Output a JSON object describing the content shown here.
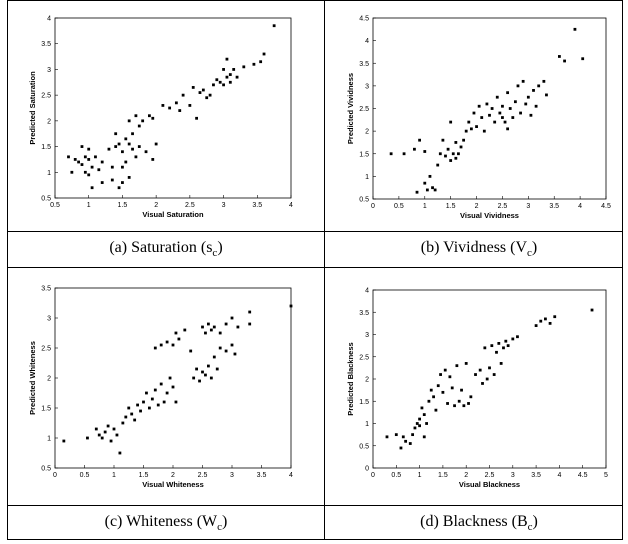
{
  "figure": {
    "captions": [
      {
        "main": "(a) Saturation (s",
        "sub": "c",
        "close": ")"
      },
      {
        "main": "(b) Vividness (V",
        "sub": "c",
        "close": ")"
      },
      {
        "main": "(c) Whiteness (W",
        "sub": "c",
        "close": ")"
      },
      {
        "main": "(d) Blackness (B",
        "sub": "c",
        "close": ")"
      }
    ]
  },
  "chart_data": [
    {
      "type": "scatter",
      "title": "",
      "xlabel": "Visual Saturation",
      "ylabel": "Predicted Saturation",
      "xlim": [
        0.5,
        4
      ],
      "ylim": [
        0.5,
        4
      ],
      "xticks": [
        "0.5",
        "1",
        "1.5",
        "2",
        "2.5",
        "3",
        "3.5",
        "4"
      ],
      "yticks": [
        "0.5",
        "1",
        "1.5",
        "2",
        "2.5",
        "3",
        "3.5",
        "4"
      ],
      "points": [
        [
          0.7,
          1.3
        ],
        [
          0.75,
          1.0
        ],
        [
          0.8,
          1.25
        ],
        [
          0.85,
          1.2
        ],
        [
          0.9,
          1.5
        ],
        [
          0.9,
          1.15
        ],
        [
          0.95,
          1.0
        ],
        [
          0.95,
          1.3
        ],
        [
          1.0,
          0.95
        ],
        [
          1.0,
          1.45
        ],
        [
          1.0,
          1.25
        ],
        [
          1.05,
          0.7
        ],
        [
          1.05,
          1.1
        ],
        [
          1.1,
          1.3
        ],
        [
          1.15,
          1.05
        ],
        [
          1.2,
          0.8
        ],
        [
          1.2,
          1.2
        ],
        [
          1.3,
          1.45
        ],
        [
          1.35,
          1.1
        ],
        [
          1.35,
          0.85
        ],
        [
          1.4,
          1.5
        ],
        [
          1.4,
          1.75
        ],
        [
          1.45,
          1.55
        ],
        [
          1.45,
          0.7
        ],
        [
          1.5,
          1.4
        ],
        [
          1.5,
          1.1
        ],
        [
          1.5,
          0.8
        ],
        [
          1.55,
          1.2
        ],
        [
          1.55,
          1.65
        ],
        [
          1.6,
          1.55
        ],
        [
          1.6,
          2.0
        ],
        [
          1.6,
          0.9
        ],
        [
          1.65,
          1.45
        ],
        [
          1.65,
          1.75
        ],
        [
          1.7,
          2.1
        ],
        [
          1.7,
          1.3
        ],
        [
          1.75,
          1.9
        ],
        [
          1.75,
          1.5
        ],
        [
          1.8,
          2.0
        ],
        [
          1.85,
          1.4
        ],
        [
          1.9,
          2.1
        ],
        [
          1.95,
          1.25
        ],
        [
          1.95,
          2.05
        ],
        [
          2.0,
          1.55
        ],
        [
          2.1,
          2.3
        ],
        [
          2.2,
          2.25
        ],
        [
          2.3,
          2.35
        ],
        [
          2.35,
          2.2
        ],
        [
          2.4,
          2.5
        ],
        [
          2.5,
          2.3
        ],
        [
          2.55,
          2.65
        ],
        [
          2.6,
          2.05
        ],
        [
          2.65,
          2.55
        ],
        [
          2.7,
          2.6
        ],
        [
          2.75,
          2.45
        ],
        [
          2.8,
          2.5
        ],
        [
          2.85,
          2.7
        ],
        [
          2.9,
          2.8
        ],
        [
          2.95,
          2.75
        ],
        [
          3.0,
          3.0
        ],
        [
          3.0,
          2.7
        ],
        [
          3.05,
          3.2
        ],
        [
          3.05,
          2.85
        ],
        [
          3.1,
          2.9
        ],
        [
          3.1,
          2.75
        ],
        [
          3.15,
          3.0
        ],
        [
          3.2,
          2.85
        ],
        [
          3.3,
          3.05
        ],
        [
          3.45,
          3.1
        ],
        [
          3.55,
          3.15
        ],
        [
          3.6,
          3.3
        ],
        [
          3.75,
          3.85
        ]
      ]
    },
    {
      "type": "scatter",
      "title": "",
      "xlabel": "Visual Vividness",
      "ylabel": "Predicted Vividness",
      "xlim": [
        0,
        4.5
      ],
      "ylim": [
        0.5,
        4.5
      ],
      "xticks": [
        "0",
        "0.5",
        "1",
        "1.5",
        "2",
        "2.5",
        "3",
        "3.5",
        "4",
        "4.5"
      ],
      "yticks": [
        "0.5",
        "1",
        "1.5",
        "2",
        "2.5",
        "3",
        "3.5",
        "4",
        "4.5"
      ],
      "points": [
        [
          0.35,
          1.5
        ],
        [
          0.6,
          1.5
        ],
        [
          0.8,
          1.6
        ],
        [
          0.85,
          0.65
        ],
        [
          0.9,
          1.8
        ],
        [
          1.0,
          1.55
        ],
        [
          1.0,
          0.85
        ],
        [
          1.05,
          0.7
        ],
        [
          1.1,
          1.0
        ],
        [
          1.15,
          0.75
        ],
        [
          1.2,
          0.7
        ],
        [
          1.25,
          1.25
        ],
        [
          1.3,
          1.5
        ],
        [
          1.35,
          1.8
        ],
        [
          1.4,
          1.45
        ],
        [
          1.45,
          1.6
        ],
        [
          1.5,
          1.35
        ],
        [
          1.5,
          2.2
        ],
        [
          1.55,
          1.5
        ],
        [
          1.6,
          1.4
        ],
        [
          1.6,
          1.75
        ],
        [
          1.65,
          1.5
        ],
        [
          1.7,
          1.65
        ],
        [
          1.75,
          1.8
        ],
        [
          1.8,
          2.0
        ],
        [
          1.85,
          2.2
        ],
        [
          1.9,
          2.05
        ],
        [
          1.95,
          2.4
        ],
        [
          2.0,
          2.1
        ],
        [
          2.05,
          2.55
        ],
        [
          2.1,
          2.3
        ],
        [
          2.15,
          2.0
        ],
        [
          2.2,
          2.6
        ],
        [
          2.25,
          2.35
        ],
        [
          2.3,
          2.5
        ],
        [
          2.35,
          2.2
        ],
        [
          2.4,
          2.75
        ],
        [
          2.45,
          2.4
        ],
        [
          2.5,
          2.3
        ],
        [
          2.5,
          2.55
        ],
        [
          2.55,
          2.2
        ],
        [
          2.6,
          2.85
        ],
        [
          2.6,
          2.05
        ],
        [
          2.65,
          2.5
        ],
        [
          2.7,
          2.3
        ],
        [
          2.75,
          2.65
        ],
        [
          2.8,
          3.0
        ],
        [
          2.85,
          2.4
        ],
        [
          2.9,
          3.1
        ],
        [
          2.95,
          2.6
        ],
        [
          3.0,
          2.75
        ],
        [
          3.05,
          2.35
        ],
        [
          3.1,
          2.9
        ],
        [
          3.15,
          2.55
        ],
        [
          3.2,
          3.0
        ],
        [
          3.3,
          3.1
        ],
        [
          3.35,
          2.8
        ],
        [
          3.6,
          3.65
        ],
        [
          3.7,
          3.55
        ],
        [
          3.9,
          4.25
        ],
        [
          4.05,
          3.6
        ]
      ]
    },
    {
      "type": "scatter",
      "title": "",
      "xlabel": "Visual Whiteness",
      "ylabel": "Predicted Whiteness",
      "xlim": [
        0,
        4
      ],
      "ylim": [
        0.5,
        3.5
      ],
      "xticks": [
        "0",
        "0.5",
        "1",
        "1.5",
        "2",
        "2.5",
        "3",
        "3.5",
        "4"
      ],
      "yticks": [
        "0.5",
        "1",
        "1.5",
        "2",
        "2.5",
        "3",
        "3.5"
      ],
      "points": [
        [
          0.15,
          0.95
        ],
        [
          0.55,
          1.0
        ],
        [
          0.7,
          1.15
        ],
        [
          0.75,
          1.05
        ],
        [
          0.8,
          1.0
        ],
        [
          0.85,
          1.1
        ],
        [
          0.9,
          1.2
        ],
        [
          0.95,
          0.95
        ],
        [
          1.0,
          1.15
        ],
        [
          1.05,
          1.05
        ],
        [
          1.1,
          0.75
        ],
        [
          1.15,
          1.25
        ],
        [
          1.2,
          1.35
        ],
        [
          1.25,
          1.5
        ],
        [
          1.3,
          1.4
        ],
        [
          1.35,
          1.3
        ],
        [
          1.4,
          1.55
        ],
        [
          1.45,
          1.45
        ],
        [
          1.5,
          1.6
        ],
        [
          1.55,
          1.75
        ],
        [
          1.6,
          1.5
        ],
        [
          1.65,
          1.65
        ],
        [
          1.7,
          1.8
        ],
        [
          1.75,
          1.55
        ],
        [
          1.8,
          1.9
        ],
        [
          1.85,
          1.6
        ],
        [
          1.9,
          1.75
        ],
        [
          1.95,
          2.0
        ],
        [
          2.0,
          1.85
        ],
        [
          2.05,
          1.6
        ],
        [
          1.7,
          2.5
        ],
        [
          1.8,
          2.55
        ],
        [
          1.9,
          2.6
        ],
        [
          2.0,
          2.55
        ],
        [
          2.05,
          2.75
        ],
        [
          2.1,
          2.65
        ],
        [
          2.2,
          2.8
        ],
        [
          2.3,
          2.45
        ],
        [
          2.35,
          2.0
        ],
        [
          2.4,
          2.15
        ],
        [
          2.45,
          1.95
        ],
        [
          2.5,
          2.1
        ],
        [
          2.55,
          2.05
        ],
        [
          2.6,
          2.2
        ],
        [
          2.65,
          2.0
        ],
        [
          2.7,
          2.35
        ],
        [
          2.75,
          2.15
        ],
        [
          2.8,
          2.5
        ],
        [
          2.9,
          2.45
        ],
        [
          3.0,
          2.55
        ],
        [
          3.05,
          2.4
        ],
        [
          2.5,
          2.85
        ],
        [
          2.55,
          2.75
        ],
        [
          2.6,
          2.9
        ],
        [
          2.65,
          2.8
        ],
        [
          2.7,
          2.85
        ],
        [
          2.8,
          2.75
        ],
        [
          2.9,
          2.9
        ],
        [
          3.0,
          3.0
        ],
        [
          3.1,
          2.85
        ],
        [
          3.3,
          3.1
        ],
        [
          3.3,
          2.9
        ],
        [
          4.0,
          3.2
        ]
      ]
    },
    {
      "type": "scatter",
      "title": "",
      "xlabel": "Visual Blackness",
      "ylabel": "Predicted Blackness",
      "xlim": [
        0,
        5
      ],
      "ylim": [
        0,
        4
      ],
      "xticks": [
        "0",
        "0.5",
        "1",
        "1.5",
        "2",
        "2.5",
        "3",
        "3.5",
        "4",
        "4.5",
        "5"
      ],
      "yticks": [
        "0",
        "0.5",
        "1",
        "1.5",
        "2",
        "2.5",
        "3",
        "3.5",
        "4"
      ],
      "points": [
        [
          0.3,
          0.7
        ],
        [
          0.5,
          0.75
        ],
        [
          0.6,
          0.45
        ],
        [
          0.65,
          0.7
        ],
        [
          0.7,
          0.6
        ],
        [
          0.8,
          0.55
        ],
        [
          0.85,
          0.75
        ],
        [
          0.9,
          0.9
        ],
        [
          0.95,
          1.0
        ],
        [
          1.0,
          1.1
        ],
        [
          1.0,
          0.95
        ],
        [
          1.05,
          1.35
        ],
        [
          1.1,
          1.2
        ],
        [
          1.1,
          0.7
        ],
        [
          1.15,
          1.0
        ],
        [
          1.2,
          1.5
        ],
        [
          1.25,
          1.75
        ],
        [
          1.3,
          1.6
        ],
        [
          1.35,
          1.3
        ],
        [
          1.4,
          1.85
        ],
        [
          1.45,
          2.1
        ],
        [
          1.5,
          1.7
        ],
        [
          1.55,
          2.2
        ],
        [
          1.6,
          1.45
        ],
        [
          1.65,
          2.05
        ],
        [
          1.7,
          1.8
        ],
        [
          1.75,
          1.4
        ],
        [
          1.8,
          2.3
        ],
        [
          1.85,
          1.5
        ],
        [
          1.9,
          1.75
        ],
        [
          1.95,
          1.4
        ],
        [
          2.0,
          2.35
        ],
        [
          2.05,
          1.45
        ],
        [
          2.1,
          1.6
        ],
        [
          2.2,
          2.1
        ],
        [
          2.3,
          2.2
        ],
        [
          2.35,
          1.9
        ],
        [
          2.4,
          2.7
        ],
        [
          2.45,
          2.0
        ],
        [
          2.5,
          2.25
        ],
        [
          2.55,
          2.75
        ],
        [
          2.6,
          2.1
        ],
        [
          2.65,
          2.6
        ],
        [
          2.7,
          2.8
        ],
        [
          2.75,
          2.35
        ],
        [
          2.8,
          2.7
        ],
        [
          2.85,
          2.85
        ],
        [
          2.9,
          2.75
        ],
        [
          3.0,
          2.9
        ],
        [
          3.1,
          2.95
        ],
        [
          3.5,
          3.2
        ],
        [
          3.6,
          3.3
        ],
        [
          3.7,
          3.35
        ],
        [
          3.8,
          3.25
        ],
        [
          3.9,
          3.4
        ],
        [
          4.7,
          3.55
        ]
      ]
    }
  ]
}
